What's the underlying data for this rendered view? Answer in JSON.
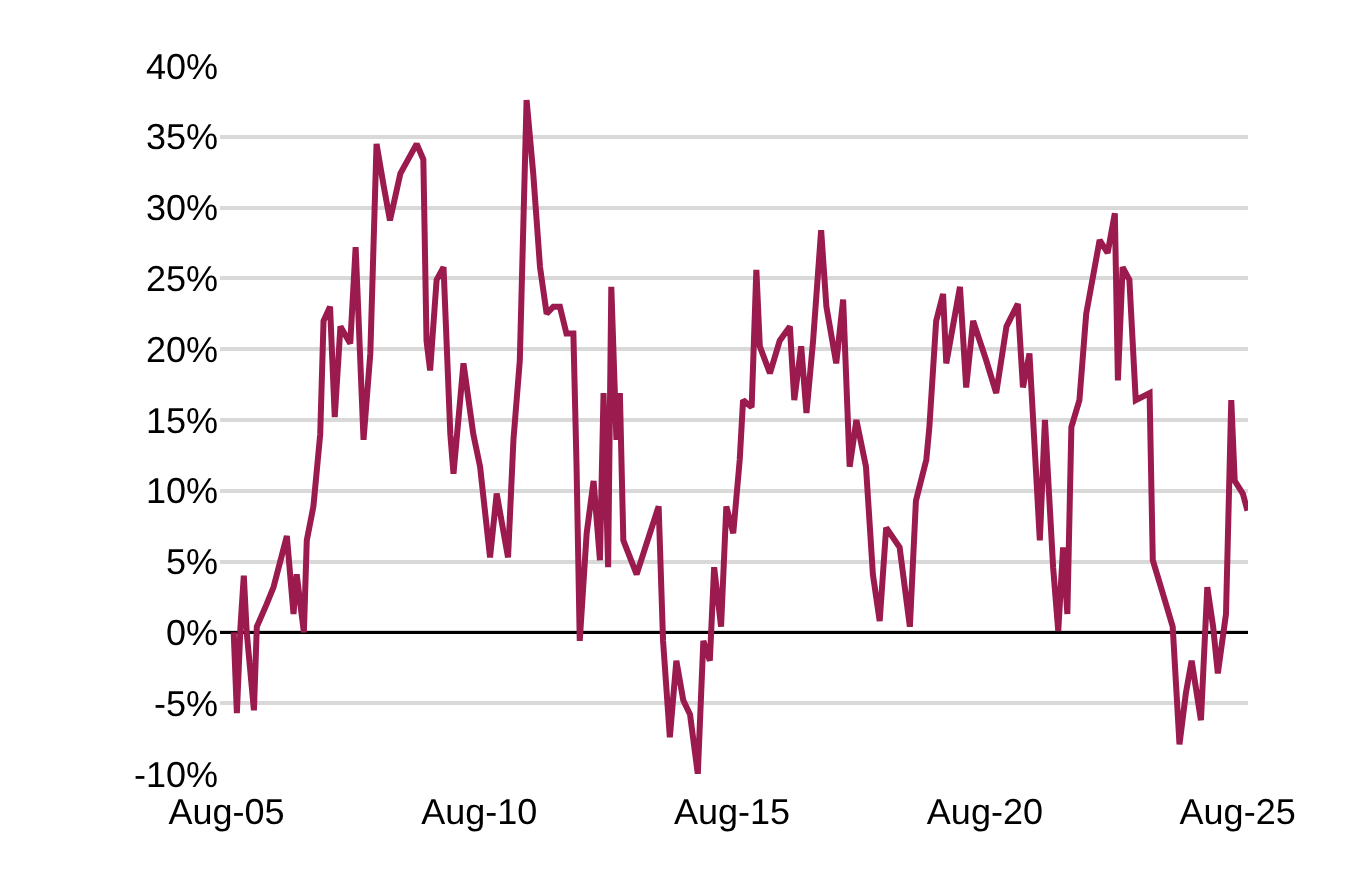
{
  "chart_data": {
    "type": "line",
    "x": [
      "2005-09-22",
      "2005-10-15",
      "2005-11-10",
      "2005-12-04",
      "2005-12-25",
      "2006-02-15",
      "2006-03-08",
      "2006-05-18",
      "2006-07-07",
      "2006-10-11",
      "2006-11-28",
      "2006-12-21",
      "2007-02-11",
      "2007-03-04",
      "2007-04-21",
      "2007-06-09",
      "2007-07-03",
      "2007-08-19",
      "2007-09-22",
      "2007-11-02",
      "2008-01-12",
      "2008-02-20",
      "2008-04-17",
      "2008-06-05",
      "2008-07-20",
      "2008-09-10",
      "2008-10-25",
      "2009-01-08",
      "2009-05-06",
      "2009-06-23",
      "2009-07-16",
      "2009-08-11",
      "2009-09-27",
      "2009-11-16",
      "2010-01-04",
      "2010-01-27",
      "2010-04-09",
      "2010-06-19",
      "2010-08-07",
      "2010-10-18",
      "2010-12-05",
      "2011-02-25",
      "2011-04-05",
      "2011-05-21",
      "2011-07-09",
      "2011-08-26",
      "2011-10-14",
      "2011-12-01",
      "2012-01-18",
      "2012-03-06",
      "2012-04-22",
      "2012-06-11",
      "2012-07-04",
      "2012-07-27",
      "2012-09-15",
      "2012-11-04",
      "2012-12-20",
      "2013-01-15",
      "2013-02-17",
      "2013-03-12",
      "2013-04-18",
      "2013-05-13",
      "2013-06-07",
      "2013-09-11",
      "2013-12-16",
      "2014-02-17",
      "2014-03-21",
      "2014-05-09",
      "2014-06-25",
      "2014-08-14",
      "2014-10-02",
      "2014-11-27",
      "2015-01-06",
      "2015-02-22",
      "2015-03-25",
      "2015-05-14",
      "2015-06-21",
      "2015-08-10",
      "2015-09-26",
      "2015-10-20",
      "2015-12-21",
      "2016-01-24",
      "2016-02-18",
      "2016-05-01",
      "2016-07-11",
      "2016-09-22",
      "2016-10-24",
      "2016-12-13",
      "2017-01-20",
      "2017-03-09",
      "2017-05-06",
      "2017-06-13",
      "2017-08-23",
      "2017-10-12",
      "2017-11-28",
      "2018-01-16",
      "2018-03-26",
      "2018-05-15",
      "2018-07-03",
      "2018-08-19",
      "2018-11-24",
      "2019-02-06",
      "2019-03-22",
      "2019-06-05",
      "2019-06-27",
      "2019-08-15",
      "2019-10-04",
      "2019-10-27",
      "2020-02-03",
      "2020-03-19",
      "2020-05-08",
      "2020-08-11",
      "2020-10-22",
      "2021-01-04",
      "2021-03-27",
      "2021-05-03",
      "2021-06-19",
      "2021-09-02",
      "2021-10-09",
      "2021-12-07",
      "2022-01-13",
      "2022-02-17",
      "2022-03-20",
      "2022-04-18",
      "2022-06-15",
      "2022-08-03",
      "2022-11-08",
      "2023-01-05",
      "2023-02-26",
      "2023-03-20",
      "2023-04-23",
      "2023-06-11",
      "2023-07-27",
      "2023-11-04",
      "2023-11-27",
      "2024-02-09",
      "2024-04-19",
      "2024-06-07",
      "2024-07-23",
      "2024-09-03",
      "2024-11-09",
      "2024-12-25",
      "2025-02-05",
      "2025-03-11",
      "2025-05-09",
      "2025-06-16",
      "2025-07-11",
      "2025-09-08",
      "2025-10-11"
    ],
    "series": [
      {
        "color": "#9b1b4e",
        "values": [
          0,
          -5.7,
          0.4,
          4,
          0,
          -5.5,
          0.4,
          2,
          3.2,
          6.8,
          1.3,
          4.1,
          0,
          6.5,
          8.9,
          14,
          22,
          23,
          15.2,
          21.6,
          20.4,
          27.2,
          13.6,
          19.7,
          34.5,
          31.5,
          29.1,
          32.4,
          34.5,
          33.4,
          20.6,
          18.5,
          24.9,
          25.8,
          14,
          11.2,
          19,
          14,
          11.7,
          5.3,
          9.8,
          5.3,
          13.6,
          19.2,
          37.6,
          32.4,
          25.8,
          22.5,
          23,
          23,
          21.1,
          21.1,
          11.7,
          -0.6,
          7,
          10.7,
          5.1,
          16.9,
          4.6,
          24.4,
          13.6,
          16.9,
          6.5,
          4.1,
          7,
          8.9,
          -0.6,
          -7.4,
          -2,
          -4.8,
          -5.8,
          -10,
          -0.6,
          -2,
          4.6,
          0.4,
          8.9,
          7,
          12.2,
          16.4,
          15.9,
          25.6,
          20.2,
          18.3,
          20.6,
          21.6,
          16.4,
          20.2,
          15.5,
          20.6,
          28.4,
          23,
          19,
          23.5,
          11.7,
          15,
          11.7,
          4.1,
          0.8,
          7.4,
          6,
          0.4,
          9.3,
          12.2,
          14.5,
          22,
          23.9,
          19,
          24.4,
          17.3,
          22,
          19.2,
          16.9,
          21.6,
          23.2,
          17.3,
          19.7,
          6.5,
          15,
          4.6,
          0.1,
          6,
          1.3,
          14.5,
          16.4,
          22.5,
          27.7,
          26.8,
          29.6,
          17.8,
          25.8,
          24.9,
          16.4,
          16.9,
          5.1,
          2.7,
          0.4,
          -7.9,
          -4.3,
          -2,
          -6.2,
          3.2,
          0.4,
          -2.9,
          1.3,
          16.4,
          10.7,
          9.8,
          8.6
        ]
      }
    ],
    "xlim": [
      "2005-06-15",
      "2025-10-15"
    ],
    "xticks": [
      {
        "value": "2005-08-01",
        "label": "Aug-05"
      },
      {
        "value": "2010-08-01",
        "label": "Aug-10"
      },
      {
        "value": "2015-08-01",
        "label": "Aug-15"
      },
      {
        "value": "2020-08-01",
        "label": "Aug-20"
      },
      {
        "value": "2025-08-01",
        "label": "Aug-25"
      }
    ],
    "ylim": [
      -10,
      40
    ],
    "yticks": [
      {
        "value": -10,
        "label": "-10%"
      },
      {
        "value": -5,
        "label": "-5%"
      },
      {
        "value": 0,
        "label": "0%"
      },
      {
        "value": 5,
        "label": "5%"
      },
      {
        "value": 10,
        "label": "10%"
      },
      {
        "value": 15,
        "label": "15%"
      },
      {
        "value": 20,
        "label": "20%"
      },
      {
        "value": 25,
        "label": "25%"
      },
      {
        "value": 30,
        "label": "30%"
      },
      {
        "value": 35,
        "label": "35%"
      },
      {
        "value": 40,
        "label": "40%"
      }
    ],
    "ref_lines": [
      {
        "axis": "y",
        "value": 0,
        "color": "#000000"
      }
    ],
    "grid": "y",
    "line_style": "solid",
    "marker": "none"
  }
}
